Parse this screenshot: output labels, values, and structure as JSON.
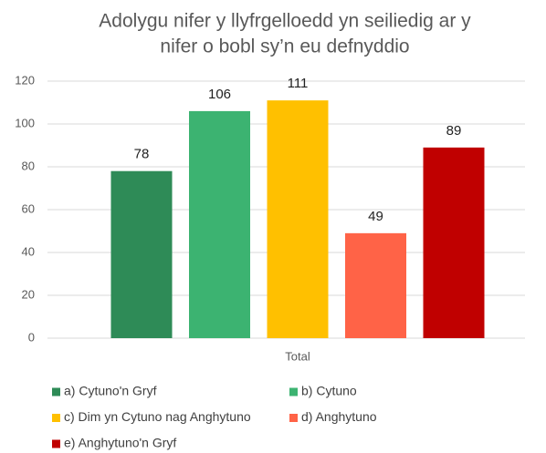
{
  "chart_data": {
    "type": "bar",
    "title": [
      "Adolygu nifer y llyfrgelloedd yn seiliedig ar y",
      "nifer o bobl sy’n eu defnyddio"
    ],
    "categories": [
      "Total"
    ],
    "series": [
      {
        "name": "a) Cytuno'n Gryf",
        "color": "#2e8b57",
        "values": [
          78
        ]
      },
      {
        "name": "b) Cytuno",
        "color": "#3cb371",
        "values": [
          106
        ]
      },
      {
        "name": "c) Dim yn Cytuno nag Anghytuno",
        "color": "#ffc000",
        "values": [
          111
        ]
      },
      {
        "name": "d) Anghytuno",
        "color": "#ff6347",
        "values": [
          49
        ]
      },
      {
        "name": "e) Anghytuno'n Gryf",
        "color": "#c00000",
        "values": [
          89
        ]
      }
    ],
    "ylim": [
      0,
      120
    ],
    "yticks": [
      0,
      20,
      40,
      60,
      80,
      100,
      120
    ],
    "grid": true,
    "legend": "bottom"
  }
}
